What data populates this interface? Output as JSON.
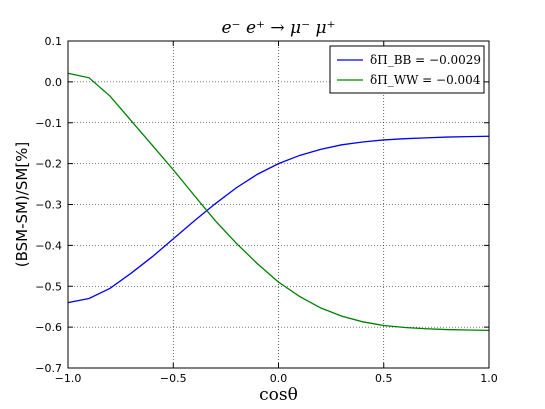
{
  "chart_data": {
    "type": "line",
    "title": "e⁻ e⁺ → μ⁻ μ⁺",
    "xlabel": "cosθ",
    "ylabel": "(BSM-SM)/SM[%]",
    "xlim": [
      -1.0,
      1.0
    ],
    "ylim": [
      -0.7,
      0.1
    ],
    "xticks": [
      -1.0,
      -0.5,
      0.0,
      0.5,
      1.0
    ],
    "xtick_labels": [
      "−1.0",
      "−0.5",
      "0.0",
      "0.5",
      "1.0"
    ],
    "yticks": [
      0.1,
      0.0,
      -0.1,
      -0.2,
      -0.3,
      -0.4,
      -0.5,
      -0.6,
      -0.7
    ],
    "ytick_labels": [
      "0.1",
      "0.0",
      "−0.1",
      "−0.2",
      "−0.3",
      "−0.4",
      "−0.5",
      "−0.6",
      "−0.7"
    ],
    "grid": true,
    "legend_position": "top-right",
    "x": [
      -1.0,
      -0.9,
      -0.8,
      -0.7,
      -0.6,
      -0.5,
      -0.4,
      -0.3,
      -0.2,
      -0.1,
      0.0,
      0.1,
      0.2,
      0.3,
      0.4,
      0.5,
      0.6,
      0.7,
      0.8,
      0.9,
      1.0
    ],
    "series": [
      {
        "name": "δΠ_BB = −0.0029",
        "color": "#0000ff",
        "values": [
          -0.54,
          -0.53,
          -0.505,
          -0.468,
          -0.428,
          -0.384,
          -0.34,
          -0.298,
          -0.259,
          -0.226,
          -0.2,
          -0.18,
          -0.165,
          -0.154,
          -0.147,
          -0.142,
          -0.139,
          -0.137,
          -0.135,
          -0.134,
          -0.133
        ]
      },
      {
        "name": "δΠ_WW = −0.004",
        "color": "#008000",
        "values": [
          0.021,
          0.01,
          -0.035,
          -0.095,
          -0.155,
          -0.215,
          -0.278,
          -0.34,
          -0.395,
          -0.445,
          -0.49,
          -0.525,
          -0.553,
          -0.573,
          -0.587,
          -0.596,
          -0.601,
          -0.604,
          -0.606,
          -0.607,
          -0.608
        ]
      }
    ]
  }
}
